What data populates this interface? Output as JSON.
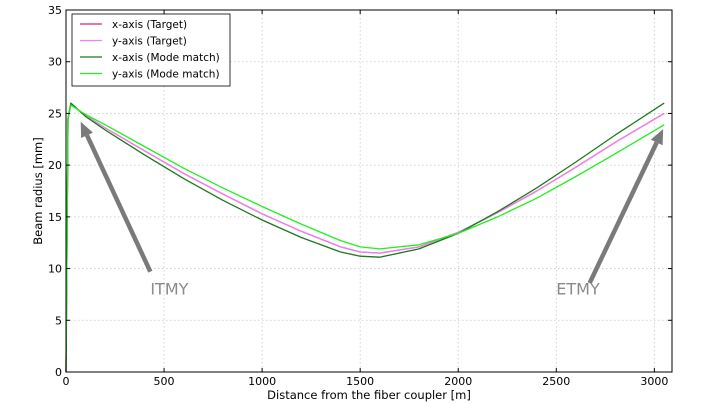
{
  "chart_data": {
    "type": "line",
    "title": "",
    "xlabel": "Distance from the fiber coupler [m]",
    "ylabel": "Beam radius [mm]",
    "xlim": [
      0,
      3090
    ],
    "ylim": [
      0,
      35
    ],
    "xticks": [
      0,
      500,
      1000,
      1500,
      2000,
      2500,
      3000
    ],
    "yticks": [
      0,
      5,
      10,
      15,
      20,
      25,
      30,
      35
    ],
    "grid": true,
    "legend_position": "top-left",
    "series": [
      {
        "name": "x-axis (Target)",
        "color": "#e0207a",
        "x": [
          0,
          10,
          25,
          100,
          200,
          400,
          600,
          800,
          1000,
          1200,
          1400,
          1500,
          1600,
          1800,
          2000,
          2200,
          2400,
          2600,
          2800,
          3050
        ],
        "y": [
          0,
          24.5,
          25.9,
          24.8,
          23.6,
          21.4,
          19.2,
          17.2,
          15.3,
          13.6,
          12.1,
          11.6,
          11.5,
          12.1,
          13.5,
          15.4,
          17.5,
          19.8,
          22.2,
          25.0
        ]
      },
      {
        "name": "y-axis (Target)",
        "color": "#ee82ee",
        "x": [
          0,
          10,
          25,
          100,
          200,
          400,
          600,
          800,
          1000,
          1200,
          1400,
          1500,
          1600,
          1800,
          2000,
          2200,
          2400,
          2600,
          2800,
          3050
        ],
        "y": [
          0,
          24.5,
          25.9,
          24.8,
          23.6,
          21.4,
          19.2,
          17.2,
          15.3,
          13.6,
          12.1,
          11.6,
          11.5,
          12.1,
          13.5,
          15.4,
          17.5,
          19.8,
          22.2,
          25.0
        ]
      },
      {
        "name": "x-axis (Mode match)",
        "color": "#1a7a1a",
        "x": [
          0,
          10,
          25,
          100,
          200,
          400,
          600,
          800,
          1000,
          1200,
          1400,
          1500,
          1600,
          1800,
          2000,
          2200,
          2400,
          2600,
          2800,
          3050
        ],
        "y": [
          0,
          24.5,
          26.0,
          24.7,
          23.4,
          21.0,
          18.7,
          16.6,
          14.7,
          13.0,
          11.6,
          11.2,
          11.1,
          11.9,
          13.4,
          15.5,
          17.8,
          20.3,
          22.9,
          26.0
        ]
      },
      {
        "name": "y-axis (Mode match)",
        "color": "#22ee22",
        "x": [
          0,
          10,
          25,
          100,
          200,
          400,
          600,
          800,
          1000,
          1200,
          1400,
          1500,
          1600,
          1800,
          2000,
          2200,
          2400,
          2600,
          2800,
          3050
        ],
        "y": [
          0,
          24.5,
          25.8,
          24.9,
          23.9,
          21.8,
          19.7,
          17.8,
          16.0,
          14.3,
          12.7,
          12.1,
          11.9,
          12.3,
          13.4,
          15.0,
          16.8,
          18.9,
          21.1,
          23.9
        ]
      }
    ],
    "annotations": [
      {
        "text": "ITMY",
        "text_at": [
          430,
          7.5
        ],
        "arrow_from": [
          430,
          9.7
        ],
        "arrow_to": [
          75,
          24.2
        ]
      },
      {
        "text": "ETMY",
        "text_at": [
          2500,
          7.5
        ],
        "arrow_from": [
          2670,
          8.6
        ],
        "arrow_to": [
          3045,
          23.5
        ]
      }
    ]
  }
}
